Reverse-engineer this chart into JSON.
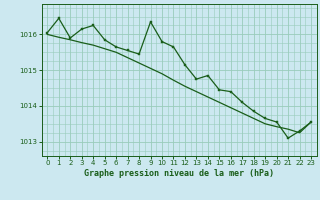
{
  "title": "Graphe pression niveau de la mer (hPa)",
  "background_color": "#cce8f0",
  "grid_color": "#99ccbb",
  "line_color": "#1a5e1a",
  "marker_color": "#1a5e1a",
  "xlim": [
    -0.5,
    23.5
  ],
  "ylim": [
    1012.6,
    1016.85
  ],
  "yticks": [
    1013,
    1014,
    1015,
    1016
  ],
  "xticks": [
    0,
    1,
    2,
    3,
    4,
    5,
    6,
    7,
    8,
    9,
    10,
    11,
    12,
    13,
    14,
    15,
    16,
    17,
    18,
    19,
    20,
    21,
    22,
    23
  ],
  "series1_x": [
    0,
    1,
    2,
    3,
    4,
    5,
    6,
    7,
    8,
    9,
    10,
    11,
    12,
    13,
    14,
    15,
    16,
    17,
    18,
    19,
    20,
    21,
    22,
    23
  ],
  "series1_y": [
    1016.05,
    1016.45,
    1015.9,
    1016.15,
    1016.25,
    1015.85,
    1015.65,
    1015.55,
    1015.45,
    1016.35,
    1015.8,
    1015.65,
    1015.15,
    1014.75,
    1014.85,
    1014.45,
    1014.4,
    1014.1,
    1013.85,
    1013.65,
    1013.55,
    1013.1,
    1013.3,
    1013.55
  ],
  "series2_x": [
    0,
    1,
    2,
    3,
    4,
    5,
    6,
    7,
    8,
    9,
    10,
    11,
    12,
    13,
    14,
    15,
    16,
    17,
    18,
    19,
    20,
    21,
    22,
    23
  ],
  "series2_y": [
    1016.0,
    1015.92,
    1015.85,
    1015.77,
    1015.7,
    1015.6,
    1015.5,
    1015.35,
    1015.2,
    1015.05,
    1014.9,
    1014.72,
    1014.55,
    1014.4,
    1014.25,
    1014.1,
    1013.95,
    1013.8,
    1013.65,
    1013.5,
    1013.42,
    1013.35,
    1013.25,
    1013.55
  ],
  "title_fontsize": 6.0,
  "tick_fontsize": 5.0
}
